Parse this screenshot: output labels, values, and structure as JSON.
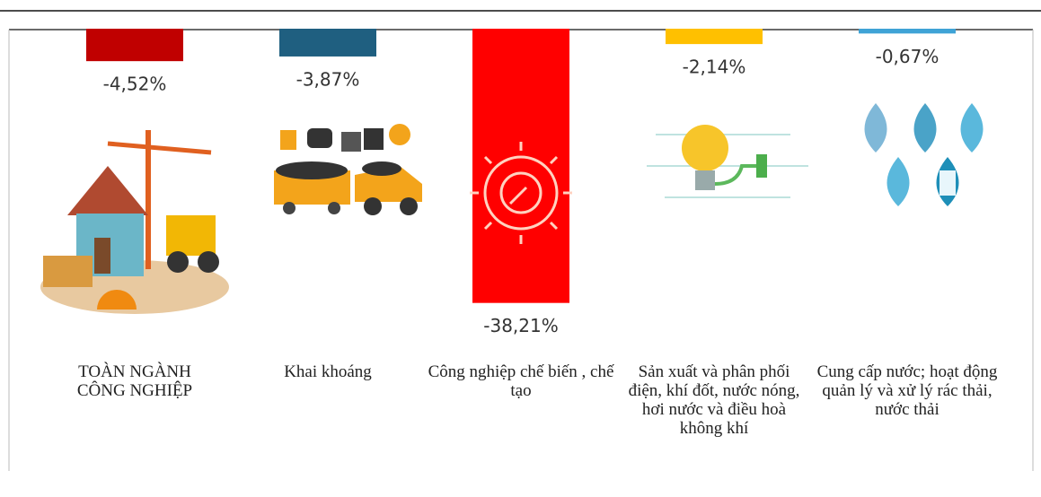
{
  "chart_data": {
    "type": "bar",
    "categories": [
      "TOÀN NGÀNH CÔNG NGHIỆP",
      "Khai khoáng",
      "Công nghiệp chế biến , chế tạo",
      "Sản xuất và phân phối điện, khí đốt, nước nóng, hơi nước và điều hoà không khí",
      "Cung cấp nước; hoạt động quản lý và xử lý rác thải, nước thải"
    ],
    "values": [
      -4.52,
      -3.87,
      -38.21,
      -2.14,
      -0.67
    ],
    "value_labels": [
      "-4,52%",
      "-3,87%",
      "-38,21%",
      "-2,14%",
      "-0,67%"
    ],
    "colors": [
      "#c00000",
      "#1f5f80",
      "#ff0000",
      "#ffc000",
      "#3fa3d6"
    ]
  }
}
